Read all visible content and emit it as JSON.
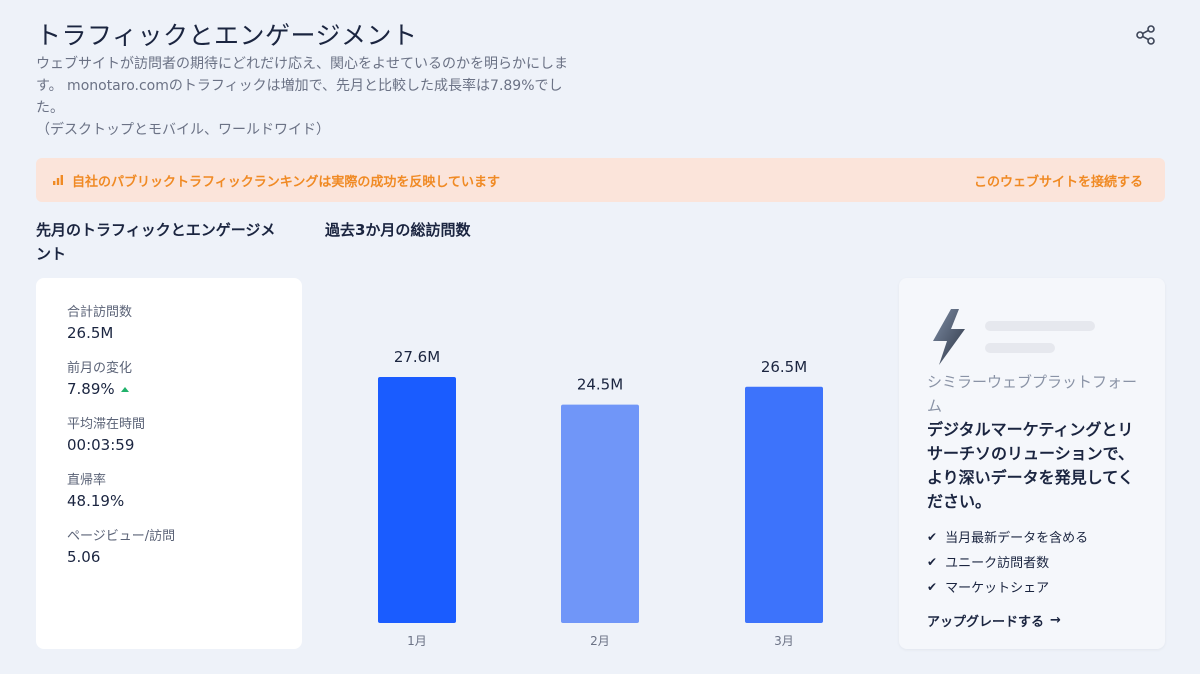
{
  "header": {
    "title": "トラフィックとエンゲージメント",
    "description_lines": [
      "ウェブサイトが訪問者の期待にどれだけ応え、関心をよせているのかを明らかにしま",
      "す。 monotaro.comのトラフィックは増加で、先月と比較した成長率は7.89%でし",
      "た。",
      "（デスクトップとモバイル、ワールドワイド）"
    ],
    "share_icon": "share-icon"
  },
  "banner": {
    "text": "自社のパブリックトラフィックランキングは実際の成功を反映しています",
    "link": "このウェブサイトを接続する",
    "icon": "bar-chart-icon",
    "color": "#f08a24"
  },
  "sections": {
    "last_month_title": "先月のトラフィックとエンゲージメ\nント",
    "visits_title": "過去3か月の総訪問数"
  },
  "stats": [
    {
      "label": "合計訪問数",
      "value": "26.5M"
    },
    {
      "label": "前月の変化",
      "value": "7.89%"
    },
    {
      "label": "平均滞在時間",
      "value": "00:03:59"
    },
    {
      "label": "直帰率",
      "value": "48.19%"
    },
    {
      "label": "ページビュー/訪問",
      "value": "5.06"
    }
  ],
  "chart_data": {
    "type": "bar",
    "categories": [
      "1月",
      "2月",
      "3月"
    ],
    "values": [
      27.6,
      24.5,
      26.5
    ],
    "value_labels": [
      "27.6M",
      "24.5M",
      "26.5M"
    ],
    "colors": [
      "#1a5cff",
      "#7096f8",
      "#3d73fb"
    ],
    "unit": "M",
    "ylim": [
      0,
      27.6
    ],
    "grid": false
  },
  "promo": {
    "brand": "シミラーウェブプラットフォーム",
    "headline": "デジタルマーケティングとリサーチソのリューションで、より深いデータを発見してください。",
    "features": [
      "当月最新データを含める",
      "ユニーク訪問者数",
      "マーケットシェア"
    ],
    "upgrade": "アップグレードする",
    "logo_icon": "lightning-logo-icon"
  }
}
